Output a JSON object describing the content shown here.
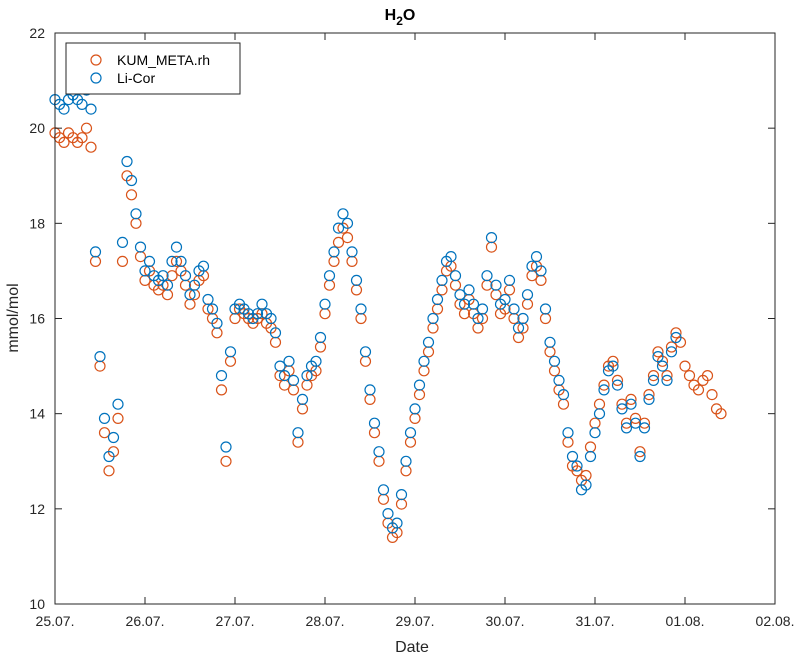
{
  "chart_data": {
    "type": "scatter",
    "title": "H",
    "title_subscript": "2",
    "title_suffix": "O",
    "xlabel": "Date",
    "ylabel": "mmol/mol",
    "xlim": [
      "25.07.",
      "02.08."
    ],
    "ylim": [
      10,
      22
    ],
    "x_ticks": [
      "25.07.",
      "26.07.",
      "27.07.",
      "28.07.",
      "29.07.",
      "30.07.",
      "31.07.",
      "01.08.",
      "02.08."
    ],
    "y_ticks": [
      10,
      12,
      14,
      16,
      18,
      20,
      22
    ],
    "grid": false,
    "legend_position": "top-left",
    "series": [
      {
        "name": "KUM_META.rh",
        "color": "#D95319",
        "points": [
          [
            25.0,
            19.9
          ],
          [
            25.05,
            19.8
          ],
          [
            25.1,
            19.7
          ],
          [
            25.15,
            19.9
          ],
          [
            25.2,
            19.8
          ],
          [
            25.25,
            19.7
          ],
          [
            25.3,
            19.8
          ],
          [
            25.35,
            20.0
          ],
          [
            25.4,
            19.6
          ],
          [
            25.45,
            17.2
          ],
          [
            25.5,
            15.0
          ],
          [
            25.55,
            13.6
          ],
          [
            25.6,
            12.8
          ],
          [
            25.65,
            13.2
          ],
          [
            25.7,
            13.9
          ],
          [
            25.75,
            17.2
          ],
          [
            25.8,
            19.0
          ],
          [
            25.85,
            18.6
          ],
          [
            25.9,
            18.0
          ],
          [
            25.95,
            17.3
          ],
          [
            26.0,
            16.8
          ],
          [
            26.05,
            17.0
          ],
          [
            26.1,
            16.7
          ],
          [
            26.15,
            16.6
          ],
          [
            26.2,
            16.7
          ],
          [
            26.25,
            16.5
          ],
          [
            26.3,
            16.9
          ],
          [
            26.35,
            17.2
          ],
          [
            26.4,
            17.0
          ],
          [
            26.45,
            16.7
          ],
          [
            26.5,
            16.3
          ],
          [
            26.55,
            16.5
          ],
          [
            26.6,
            16.8
          ],
          [
            26.65,
            16.9
          ],
          [
            26.7,
            16.2
          ],
          [
            26.75,
            16.0
          ],
          [
            26.8,
            15.7
          ],
          [
            26.85,
            14.5
          ],
          [
            26.9,
            13.0
          ],
          [
            26.95,
            15.1
          ],
          [
            27.0,
            16.0
          ],
          [
            27.05,
            16.2
          ],
          [
            27.1,
            16.1
          ],
          [
            27.15,
            16.0
          ],
          [
            27.2,
            15.9
          ],
          [
            27.25,
            16.0
          ],
          [
            27.3,
            16.1
          ],
          [
            27.35,
            15.9
          ],
          [
            27.4,
            15.8
          ],
          [
            27.45,
            15.5
          ],
          [
            27.5,
            14.8
          ],
          [
            27.55,
            14.6
          ],
          [
            27.6,
            14.9
          ],
          [
            27.65,
            14.5
          ],
          [
            27.7,
            13.4
          ],
          [
            27.75,
            14.1
          ],
          [
            27.8,
            14.6
          ],
          [
            27.85,
            14.8
          ],
          [
            27.9,
            14.9
          ],
          [
            27.95,
            15.4
          ],
          [
            28.0,
            16.1
          ],
          [
            28.05,
            16.7
          ],
          [
            28.1,
            17.2
          ],
          [
            28.15,
            17.6
          ],
          [
            28.2,
            17.9
          ],
          [
            28.25,
            17.7
          ],
          [
            28.3,
            17.2
          ],
          [
            28.35,
            16.6
          ],
          [
            28.4,
            16.0
          ],
          [
            28.45,
            15.1
          ],
          [
            28.5,
            14.3
          ],
          [
            28.55,
            13.6
          ],
          [
            28.6,
            13.0
          ],
          [
            28.65,
            12.2
          ],
          [
            28.7,
            11.7
          ],
          [
            28.75,
            11.4
          ],
          [
            28.8,
            11.5
          ],
          [
            28.85,
            12.1
          ],
          [
            28.9,
            12.8
          ],
          [
            28.95,
            13.4
          ],
          [
            29.0,
            13.9
          ],
          [
            29.05,
            14.4
          ],
          [
            29.1,
            14.9
          ],
          [
            29.15,
            15.3
          ],
          [
            29.2,
            15.8
          ],
          [
            29.25,
            16.2
          ],
          [
            29.3,
            16.6
          ],
          [
            29.35,
            17.0
          ],
          [
            29.4,
            17.1
          ],
          [
            29.45,
            16.7
          ],
          [
            29.5,
            16.3
          ],
          [
            29.55,
            16.1
          ],
          [
            29.6,
            16.4
          ],
          [
            29.65,
            16.1
          ],
          [
            29.7,
            15.8
          ],
          [
            29.75,
            16.0
          ],
          [
            29.8,
            16.7
          ],
          [
            29.85,
            17.5
          ],
          [
            29.9,
            16.5
          ],
          [
            29.95,
            16.1
          ],
          [
            30.0,
            16.2
          ],
          [
            30.05,
            16.6
          ],
          [
            30.1,
            16.0
          ],
          [
            30.15,
            15.6
          ],
          [
            30.2,
            15.8
          ],
          [
            30.25,
            16.3
          ],
          [
            30.3,
            16.9
          ],
          [
            30.35,
            17.1
          ],
          [
            30.4,
            16.8
          ],
          [
            30.45,
            16.0
          ],
          [
            30.5,
            15.3
          ],
          [
            30.55,
            14.9
          ],
          [
            30.6,
            14.5
          ],
          [
            30.65,
            14.2
          ],
          [
            30.7,
            13.4
          ],
          [
            30.75,
            12.9
          ],
          [
            30.8,
            12.8
          ],
          [
            30.85,
            12.6
          ],
          [
            30.9,
            12.7
          ],
          [
            30.95,
            13.3
          ],
          [
            31.0,
            13.8
          ],
          [
            31.05,
            14.2
          ],
          [
            31.1,
            14.6
          ],
          [
            31.15,
            15.0
          ],
          [
            31.2,
            15.1
          ],
          [
            31.25,
            14.7
          ],
          [
            31.3,
            14.2
          ],
          [
            31.35,
            13.8
          ],
          [
            31.4,
            14.3
          ],
          [
            31.45,
            13.9
          ],
          [
            31.5,
            13.2
          ],
          [
            31.55,
            13.8
          ],
          [
            31.6,
            14.4
          ],
          [
            31.65,
            14.8
          ],
          [
            31.7,
            15.3
          ],
          [
            31.75,
            15.1
          ],
          [
            31.8,
            14.8
          ],
          [
            31.85,
            15.4
          ],
          [
            31.9,
            15.7
          ],
          [
            31.95,
            15.5
          ],
          [
            32.0,
            15.0
          ],
          [
            32.05,
            14.8
          ],
          [
            32.1,
            14.6
          ],
          [
            32.15,
            14.5
          ],
          [
            32.2,
            14.7
          ],
          [
            32.25,
            14.8
          ],
          [
            32.3,
            14.4
          ],
          [
            32.35,
            14.1
          ],
          [
            32.4,
            14.0
          ]
        ]
      },
      {
        "name": "Li-Cor",
        "color": "#0072BD",
        "points": [
          [
            25.0,
            20.6
          ],
          [
            25.05,
            20.5
          ],
          [
            25.1,
            20.4
          ],
          [
            25.15,
            20.6
          ],
          [
            25.2,
            20.7
          ],
          [
            25.25,
            20.6
          ],
          [
            25.3,
            20.5
          ],
          [
            25.35,
            20.8
          ],
          [
            25.4,
            20.4
          ],
          [
            25.45,
            17.4
          ],
          [
            25.5,
            15.2
          ],
          [
            25.55,
            13.9
          ],
          [
            25.6,
            13.1
          ],
          [
            25.65,
            13.5
          ],
          [
            25.7,
            14.2
          ],
          [
            25.75,
            17.6
          ],
          [
            25.8,
            19.3
          ],
          [
            25.85,
            18.9
          ],
          [
            25.9,
            18.2
          ],
          [
            25.95,
            17.5
          ],
          [
            26.0,
            17.0
          ],
          [
            26.05,
            17.2
          ],
          [
            26.1,
            16.9
          ],
          [
            26.15,
            16.8
          ],
          [
            26.2,
            16.9
          ],
          [
            26.25,
            16.7
          ],
          [
            26.3,
            17.2
          ],
          [
            26.35,
            17.5
          ],
          [
            26.4,
            17.2
          ],
          [
            26.45,
            16.9
          ],
          [
            26.5,
            16.5
          ],
          [
            26.55,
            16.7
          ],
          [
            26.6,
            17.0
          ],
          [
            26.65,
            17.1
          ],
          [
            26.7,
            16.4
          ],
          [
            26.75,
            16.2
          ],
          [
            26.8,
            15.9
          ],
          [
            26.85,
            14.8
          ],
          [
            26.9,
            13.3
          ],
          [
            26.95,
            15.3
          ],
          [
            27.0,
            16.2
          ],
          [
            27.05,
            16.3
          ],
          [
            27.1,
            16.2
          ],
          [
            27.15,
            16.1
          ],
          [
            27.2,
            16.0
          ],
          [
            27.25,
            16.1
          ],
          [
            27.3,
            16.3
          ],
          [
            27.35,
            16.1
          ],
          [
            27.4,
            16.0
          ],
          [
            27.45,
            15.7
          ],
          [
            27.5,
            15.0
          ],
          [
            27.55,
            14.8
          ],
          [
            27.6,
            15.1
          ],
          [
            27.65,
            14.7
          ],
          [
            27.7,
            13.6
          ],
          [
            27.75,
            14.3
          ],
          [
            27.8,
            14.8
          ],
          [
            27.85,
            15.0
          ],
          [
            27.9,
            15.1
          ],
          [
            27.95,
            15.6
          ],
          [
            28.0,
            16.3
          ],
          [
            28.05,
            16.9
          ],
          [
            28.1,
            17.4
          ],
          [
            28.15,
            17.9
          ],
          [
            28.2,
            18.2
          ],
          [
            28.25,
            18.0
          ],
          [
            28.3,
            17.4
          ],
          [
            28.35,
            16.8
          ],
          [
            28.4,
            16.2
          ],
          [
            28.45,
            15.3
          ],
          [
            28.5,
            14.5
          ],
          [
            28.55,
            13.8
          ],
          [
            28.6,
            13.2
          ],
          [
            28.65,
            12.4
          ],
          [
            28.7,
            11.9
          ],
          [
            28.75,
            11.6
          ],
          [
            28.8,
            11.7
          ],
          [
            28.85,
            12.3
          ],
          [
            28.9,
            13.0
          ],
          [
            28.95,
            13.6
          ],
          [
            29.0,
            14.1
          ],
          [
            29.05,
            14.6
          ],
          [
            29.1,
            15.1
          ],
          [
            29.15,
            15.5
          ],
          [
            29.2,
            16.0
          ],
          [
            29.25,
            16.4
          ],
          [
            29.3,
            16.8
          ],
          [
            29.35,
            17.2
          ],
          [
            29.4,
            17.3
          ],
          [
            29.45,
            16.9
          ],
          [
            29.5,
            16.5
          ],
          [
            29.55,
            16.3
          ],
          [
            29.6,
            16.6
          ],
          [
            29.65,
            16.3
          ],
          [
            29.7,
            16.0
          ],
          [
            29.75,
            16.2
          ],
          [
            29.8,
            16.9
          ],
          [
            29.85,
            17.7
          ],
          [
            29.9,
            16.7
          ],
          [
            29.95,
            16.3
          ],
          [
            30.0,
            16.4
          ],
          [
            30.05,
            16.8
          ],
          [
            30.1,
            16.2
          ],
          [
            30.15,
            15.8
          ],
          [
            30.2,
            16.0
          ],
          [
            30.25,
            16.5
          ],
          [
            30.3,
            17.1
          ],
          [
            30.35,
            17.3
          ],
          [
            30.4,
            17.0
          ],
          [
            30.45,
            16.2
          ],
          [
            30.5,
            15.5
          ],
          [
            30.55,
            15.1
          ],
          [
            30.6,
            14.7
          ],
          [
            30.65,
            14.4
          ],
          [
            30.7,
            13.6
          ],
          [
            30.75,
            13.1
          ],
          [
            30.8,
            12.9
          ],
          [
            30.85,
            12.4
          ],
          [
            30.9,
            12.5
          ],
          [
            30.95,
            13.1
          ],
          [
            31.0,
            13.6
          ],
          [
            31.05,
            14.0
          ],
          [
            31.1,
            14.5
          ],
          [
            31.15,
            14.9
          ],
          [
            31.2,
            15.0
          ],
          [
            31.25,
            14.6
          ],
          [
            31.3,
            14.1
          ],
          [
            31.35,
            13.7
          ],
          [
            31.4,
            14.2
          ],
          [
            31.45,
            13.8
          ],
          [
            31.5,
            13.1
          ],
          [
            31.55,
            13.7
          ],
          [
            31.6,
            14.3
          ],
          [
            31.65,
            14.7
          ],
          [
            31.7,
            15.2
          ],
          [
            31.75,
            15.0
          ],
          [
            31.8,
            14.7
          ],
          [
            31.85,
            15.3
          ],
          [
            31.9,
            15.6
          ]
        ]
      }
    ]
  }
}
